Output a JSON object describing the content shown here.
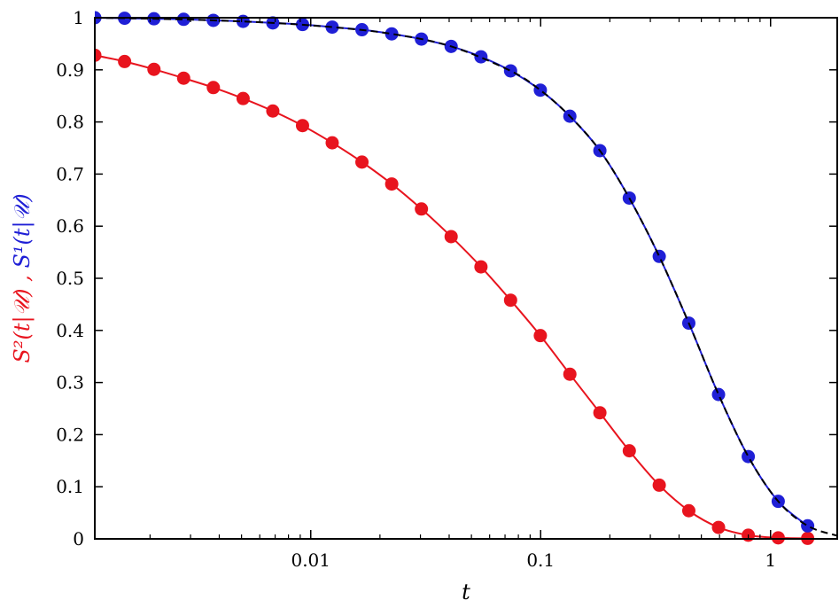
{
  "chart_data": {
    "type": "line",
    "title": "",
    "xlabel": "t",
    "ylabel_parts": [
      {
        "text": "S²(t|𝒰)",
        "color": "#e8141e"
      },
      {
        "text": ", ",
        "color": "#e8141e"
      },
      {
        "text": "S¹(t|𝒰)",
        "color": "#1f1fd6"
      }
    ],
    "x_scale": "log",
    "xlim": [
      0.00115,
      1.95
    ],
    "ylim": [
      0,
      1
    ],
    "x_ticks": [
      {
        "value": 0.01,
        "label": "0.01"
      },
      {
        "value": 0.1,
        "label": "0.1"
      },
      {
        "value": 1,
        "label": "1"
      }
    ],
    "y_ticks": [
      {
        "value": 0,
        "label": "0"
      },
      {
        "value": 0.1,
        "label": "0.1"
      },
      {
        "value": 0.2,
        "label": "0.2"
      },
      {
        "value": 0.3,
        "label": "0.3"
      },
      {
        "value": 0.4,
        "label": "0.4"
      },
      {
        "value": 0.5,
        "label": "0.5"
      },
      {
        "value": 0.6,
        "label": "0.6"
      },
      {
        "value": 0.7,
        "label": "0.7"
      },
      {
        "value": 0.8,
        "label": "0.8"
      },
      {
        "value": 0.9,
        "label": "0.9"
      },
      {
        "value": 1,
        "label": "1"
      }
    ],
    "grid": false,
    "legend": "none",
    "series": [
      {
        "color": "#e8141e",
        "marker": "circle",
        "line": "solid",
        "points": [
          [
            0.00115,
            0.928
          ],
          [
            0.00155,
            0.916
          ],
          [
            0.00208,
            0.901
          ],
          [
            0.0028,
            0.884
          ],
          [
            0.00377,
            0.866
          ],
          [
            0.00508,
            0.845
          ],
          [
            0.00684,
            0.821
          ],
          [
            0.00921,
            0.793
          ],
          [
            0.0124,
            0.76
          ],
          [
            0.0167,
            0.723
          ],
          [
            0.0225,
            0.681
          ],
          [
            0.0303,
            0.633
          ],
          [
            0.0408,
            0.58
          ],
          [
            0.055,
            0.522
          ],
          [
            0.074,
            0.458
          ],
          [
            0.0997,
            0.39
          ],
          [
            0.134,
            0.316
          ],
          [
            0.181,
            0.242
          ],
          [
            0.243,
            0.169
          ],
          [
            0.328,
            0.103
          ],
          [
            0.441,
            0.054
          ],
          [
            0.594,
            0.022
          ],
          [
            0.8,
            0.007
          ],
          [
            1.08,
            0.002
          ],
          [
            1.45,
            0.001
          ]
        ]
      },
      {
        "color": "#1f1fd6",
        "marker": "circle",
        "line": "solid",
        "points": [
          [
            0.00115,
            1.0
          ],
          [
            0.00155,
            0.999
          ],
          [
            0.00208,
            0.998
          ],
          [
            0.0028,
            0.997
          ],
          [
            0.00377,
            0.995
          ],
          [
            0.00508,
            0.993
          ],
          [
            0.00684,
            0.99
          ],
          [
            0.00921,
            0.987
          ],
          [
            0.0124,
            0.982
          ],
          [
            0.0167,
            0.977
          ],
          [
            0.0225,
            0.969
          ],
          [
            0.0303,
            0.959
          ],
          [
            0.0408,
            0.945
          ],
          [
            0.055,
            0.925
          ],
          [
            0.074,
            0.898
          ],
          [
            0.0997,
            0.861
          ],
          [
            0.134,
            0.811
          ],
          [
            0.181,
            0.745
          ],
          [
            0.243,
            0.654
          ],
          [
            0.328,
            0.542
          ],
          [
            0.441,
            0.414
          ],
          [
            0.594,
            0.277
          ],
          [
            0.8,
            0.158
          ],
          [
            1.08,
            0.072
          ],
          [
            1.45,
            0.025
          ]
        ]
      },
      {
        "color": "#000000",
        "marker": "none",
        "line": "dashed",
        "points": [
          [
            0.00115,
            1.0
          ],
          [
            0.00208,
            0.998
          ],
          [
            0.00377,
            0.995
          ],
          [
            0.00684,
            0.99
          ],
          [
            0.0124,
            0.982
          ],
          [
            0.0225,
            0.969
          ],
          [
            0.0408,
            0.945
          ],
          [
            0.074,
            0.898
          ],
          [
            0.0997,
            0.861
          ],
          [
            0.134,
            0.811
          ],
          [
            0.181,
            0.745
          ],
          [
            0.243,
            0.654
          ],
          [
            0.328,
            0.542
          ],
          [
            0.441,
            0.414
          ],
          [
            0.594,
            0.277
          ],
          [
            0.8,
            0.158
          ],
          [
            1.08,
            0.072
          ],
          [
            1.45,
            0.025
          ],
          [
            1.95,
            0.006
          ]
        ]
      }
    ]
  }
}
